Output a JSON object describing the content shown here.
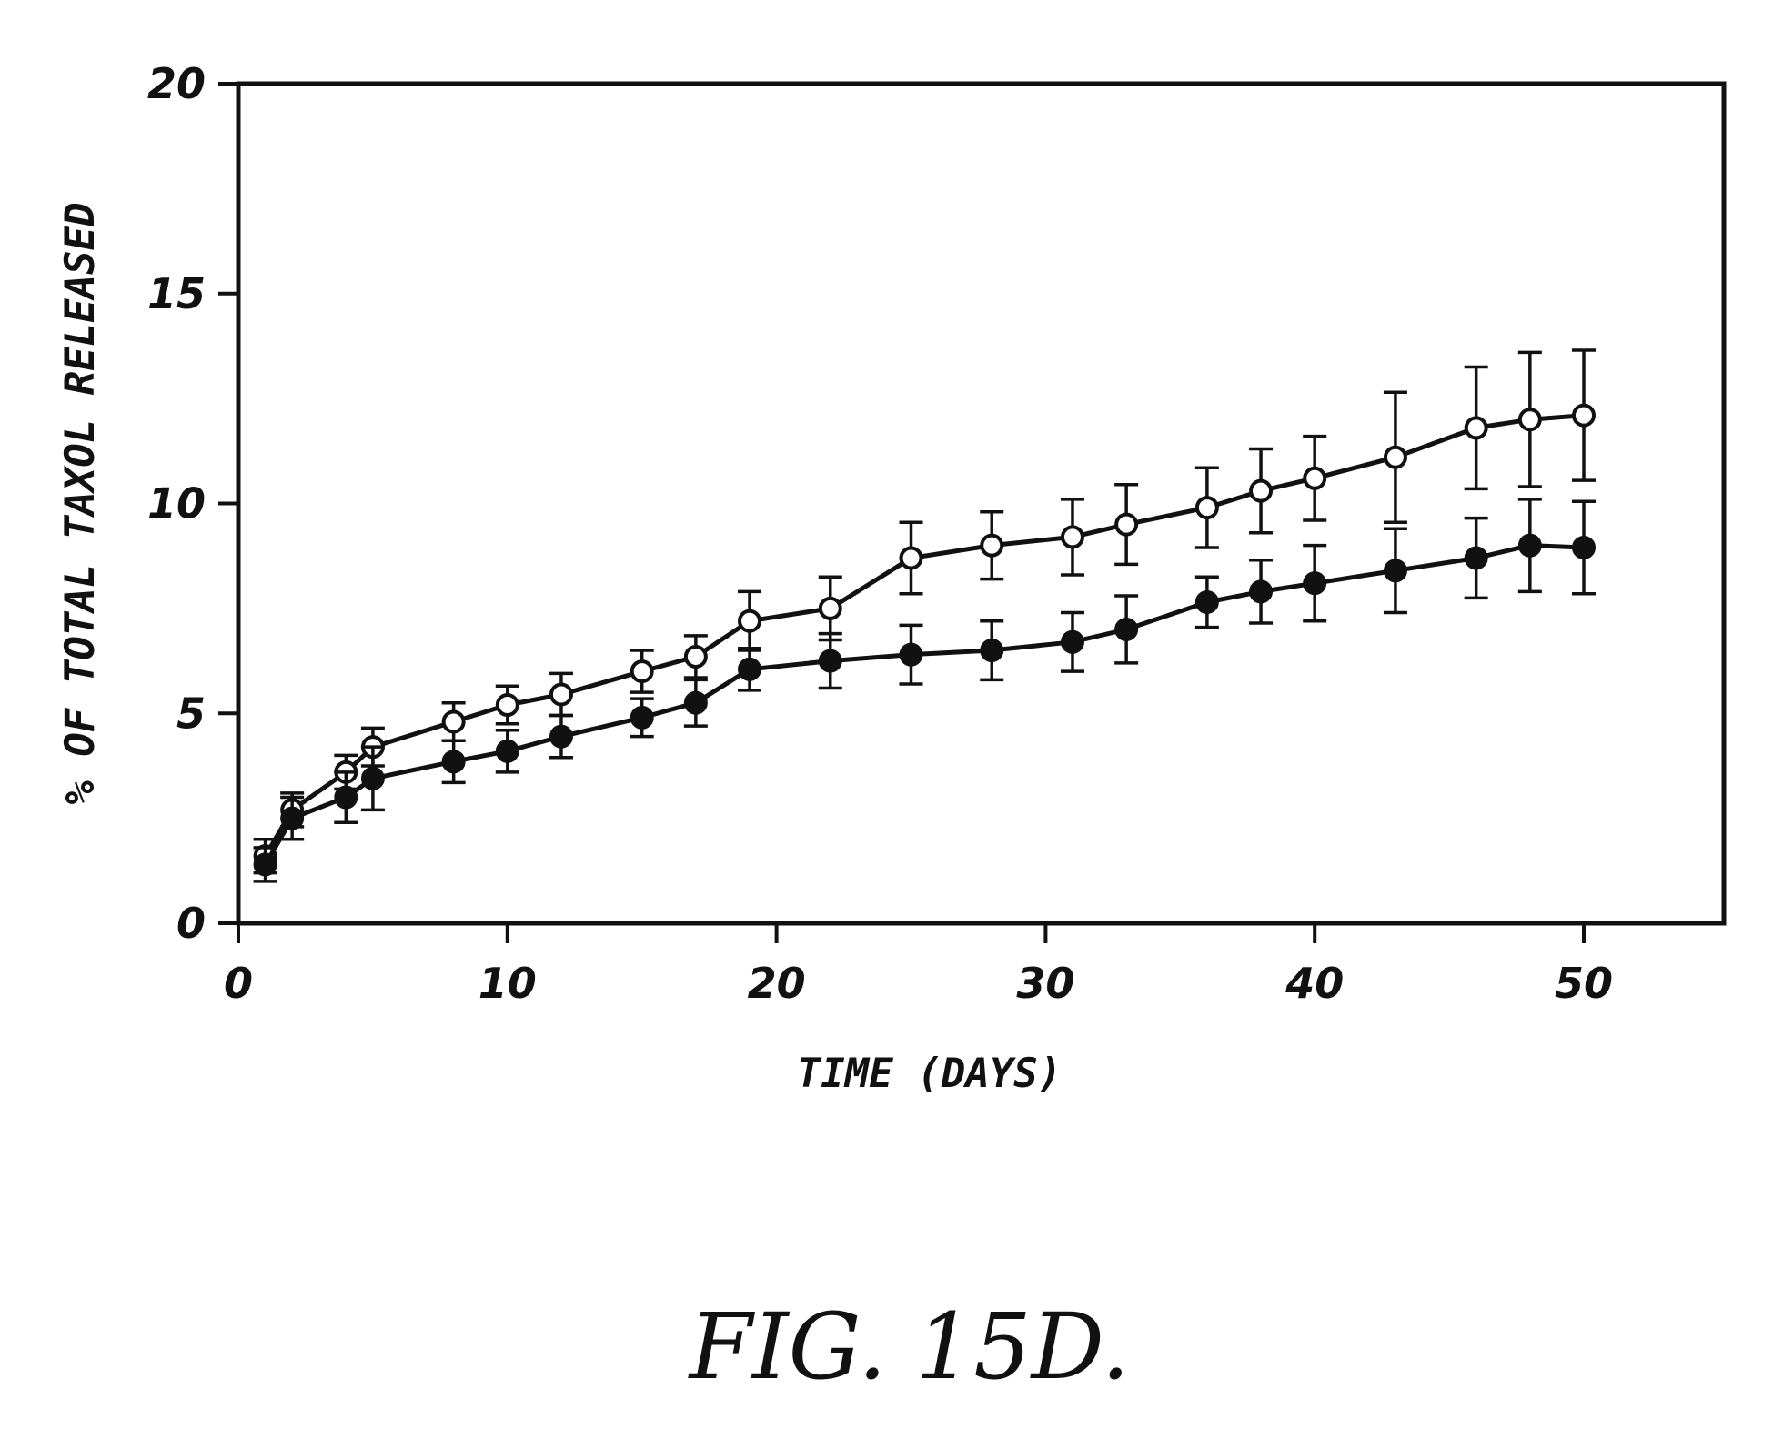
{
  "chart_data": {
    "type": "line",
    "caption": "FIG. 15D.",
    "xlabel": "TIME (DAYS)",
    "ylabel": "% OF TOTAL TAXOL RELEASED",
    "xlim": [
      0,
      55
    ],
    "ylim": [
      0,
      20
    ],
    "xticks": [
      0,
      10,
      20,
      30,
      40,
      50
    ],
    "xtick_labels": [
      "0",
      "10",
      "20",
      "30",
      "40",
      "50"
    ],
    "yticks": [
      0,
      5,
      10,
      15,
      20
    ],
    "ytick_labels": [
      "0",
      "5",
      "10",
      "15",
      "20"
    ],
    "grid": false,
    "series": [
      {
        "marker": "open-circle",
        "x": [
          1,
          2,
          4,
          5,
          8,
          10,
          12,
          15,
          17,
          19,
          22,
          25,
          28,
          31,
          33,
          36,
          38,
          40,
          43,
          46,
          48,
          50
        ],
        "y": [
          1.6,
          2.7,
          3.6,
          4.2,
          4.8,
          5.2,
          5.45,
          6.0,
          6.35,
          7.2,
          7.5,
          8.7,
          9.0,
          9.2,
          9.5,
          9.9,
          10.3,
          10.6,
          11.1,
          11.8,
          12.0,
          12.1
        ],
        "err": [
          0.4,
          0.4,
          0.4,
          0.45,
          0.45,
          0.45,
          0.5,
          0.5,
          0.5,
          0.7,
          0.75,
          0.85,
          0.8,
          0.9,
          0.95,
          0.95,
          1.0,
          1.0,
          1.55,
          1.45,
          1.6,
          1.55
        ]
      },
      {
        "marker": "filled-circle",
        "x": [
          1,
          2,
          4,
          5,
          8,
          10,
          12,
          15,
          17,
          19,
          22,
          25,
          28,
          31,
          33,
          36,
          38,
          40,
          43,
          46,
          48,
          50
        ],
        "y": [
          1.4,
          2.5,
          3.0,
          3.45,
          3.85,
          4.1,
          4.45,
          4.9,
          5.25,
          6.05,
          6.25,
          6.4,
          6.5,
          6.7,
          7.0,
          7.65,
          7.9,
          8.1,
          8.4,
          8.7,
          9.0,
          8.95
        ],
        "err": [
          0.4,
          0.5,
          0.6,
          0.75,
          0.5,
          0.5,
          0.5,
          0.45,
          0.55,
          0.5,
          0.65,
          0.7,
          0.7,
          0.7,
          0.8,
          0.6,
          0.75,
          0.9,
          1.0,
          0.95,
          1.1,
          1.1
        ]
      }
    ]
  }
}
